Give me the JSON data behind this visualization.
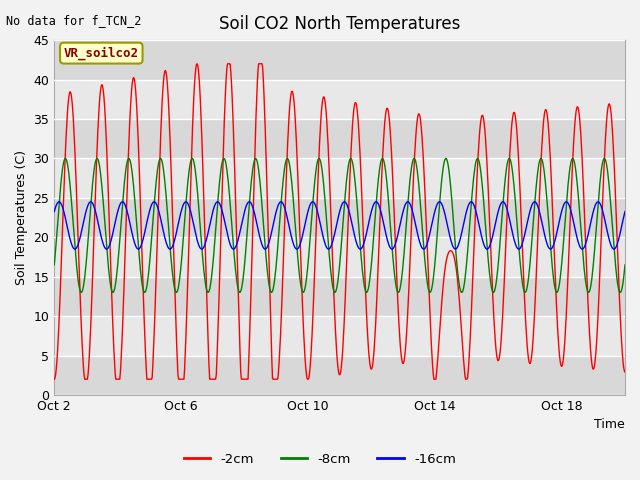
{
  "title": "Soil CO2 North Temperatures",
  "no_data_label": "No data for f_TCN_2",
  "vr_label": "VR_soilco2",
  "xlabel": "Time",
  "ylabel": "Soil Temperatures (C)",
  "ylim": [
    0,
    45
  ],
  "yticks": [
    0,
    5,
    10,
    15,
    20,
    25,
    30,
    35,
    40,
    45
  ],
  "xtick_labels": [
    "Oct 2",
    "Oct 6",
    "Oct 10",
    "Oct 14",
    "Oct 18"
  ],
  "xtick_positions": [
    0,
    4,
    8,
    12,
    16
  ],
  "n_days": 18,
  "fig_bg": "#f2f2f2",
  "plot_bg_light": "#e8e8e8",
  "plot_bg_dark": "#d8d8d8",
  "legend_labels": [
    "-2cm",
    "-8cm",
    "-16cm"
  ],
  "legend_colors": [
    "red",
    "green",
    "blue"
  ],
  "title_fontsize": 12,
  "label_fontsize": 9,
  "tick_fontsize": 9
}
